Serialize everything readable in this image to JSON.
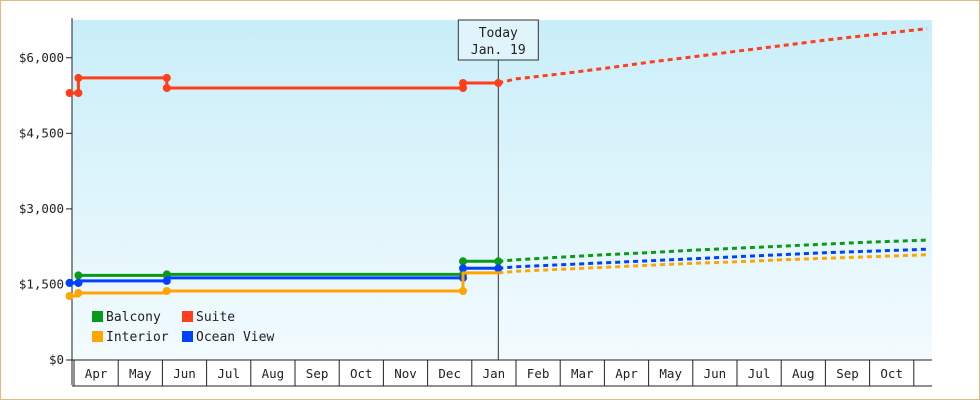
{
  "chart_data": {
    "type": "line",
    "title": "",
    "xlabel": "",
    "ylabel": "",
    "ylim": [
      0,
      6750
    ],
    "y_ticks": [
      "$0",
      "$1,500",
      "$3,000",
      "$4,500",
      "$6,000"
    ],
    "y_tick_values": [
      0,
      1500,
      3000,
      4500,
      6000
    ],
    "x_range": [
      0,
      19.3
    ],
    "x_month_labels": [
      "Apr",
      "May",
      "Jun",
      "Jul",
      "Aug",
      "Sep",
      "Oct",
      "Nov",
      "Dec",
      "Jan",
      "Feb",
      "Mar",
      "Apr",
      "May",
      "Jun",
      "Jul",
      "Aug",
      "Sep",
      "Oct"
    ],
    "today": {
      "label": "Today",
      "date": "Jan. 19",
      "x": 9.6
    },
    "legend_placement": "bottom-left",
    "series": [
      {
        "name": "Suite",
        "color": "#ff3e1e",
        "history": [
          [
            -0.1,
            5300
          ],
          [
            0.1,
            5300
          ],
          [
            0.1,
            5600
          ],
          [
            2.1,
            5600
          ],
          [
            2.1,
            5400
          ],
          [
            8.8,
            5400
          ],
          [
            8.8,
            5500
          ],
          [
            9.6,
            5500
          ]
        ],
        "markers": [
          [
            -0.1,
            5300
          ],
          [
            0.1,
            5300
          ],
          [
            0.1,
            5600
          ],
          [
            2.1,
            5600
          ],
          [
            2.1,
            5400
          ],
          [
            8.8,
            5400
          ],
          [
            8.8,
            5500
          ],
          [
            9.6,
            5500
          ]
        ],
        "forecast": [
          [
            9.6,
            5500
          ],
          [
            10.0,
            5580
          ],
          [
            11.0,
            5680
          ],
          [
            12.0,
            5790
          ],
          [
            13.0,
            5910
          ],
          [
            14.0,
            6020
          ],
          [
            15.0,
            6130
          ],
          [
            16.0,
            6240
          ],
          [
            17.0,
            6350
          ],
          [
            18.0,
            6450
          ],
          [
            19.0,
            6550
          ],
          [
            19.3,
            6580
          ]
        ]
      },
      {
        "name": "Balcony",
        "color": "#0a9a1a",
        "history": [
          [
            -0.1,
            1530
          ],
          [
            0.1,
            1530
          ],
          [
            0.1,
            1680
          ],
          [
            2.1,
            1680
          ],
          [
            2.1,
            1700
          ],
          [
            8.8,
            1700
          ],
          [
            8.8,
            1960
          ],
          [
            9.6,
            1960
          ]
        ],
        "markers": [
          [
            -0.1,
            1530
          ],
          [
            0.1,
            1530
          ],
          [
            0.1,
            1680
          ],
          [
            2.1,
            1680
          ],
          [
            2.1,
            1700
          ],
          [
            8.8,
            1700
          ],
          [
            8.8,
            1960
          ],
          [
            9.6,
            1960
          ]
        ],
        "forecast": [
          [
            9.6,
            1960
          ],
          [
            10.0,
            1990
          ],
          [
            11.0,
            2040
          ],
          [
            12.0,
            2090
          ],
          [
            13.0,
            2130
          ],
          [
            14.0,
            2180
          ],
          [
            15.0,
            2220
          ],
          [
            16.0,
            2260
          ],
          [
            17.0,
            2300
          ],
          [
            18.0,
            2340
          ],
          [
            19.0,
            2370
          ],
          [
            19.3,
            2380
          ]
        ]
      },
      {
        "name": "Ocean View",
        "color": "#0040ff",
        "history": [
          [
            -0.1,
            1530
          ],
          [
            0.1,
            1530
          ],
          [
            0.1,
            1570
          ],
          [
            2.1,
            1570
          ],
          [
            2.1,
            1630
          ],
          [
            8.8,
            1630
          ],
          [
            8.8,
            1820
          ],
          [
            9.6,
            1820
          ]
        ],
        "markers": [
          [
            -0.1,
            1530
          ],
          [
            0.1,
            1530
          ],
          [
            2.1,
            1570
          ],
          [
            8.8,
            1630
          ],
          [
            8.8,
            1820
          ],
          [
            9.6,
            1820
          ]
        ],
        "forecast": [
          [
            9.6,
            1820
          ],
          [
            10.0,
            1850
          ],
          [
            11.0,
            1890
          ],
          [
            12.0,
            1930
          ],
          [
            13.0,
            1970
          ],
          [
            14.0,
            2010
          ],
          [
            15.0,
            2050
          ],
          [
            16.0,
            2090
          ],
          [
            17.0,
            2130
          ],
          [
            18.0,
            2160
          ],
          [
            19.0,
            2190
          ],
          [
            19.3,
            2200
          ]
        ]
      },
      {
        "name": "Interior",
        "color": "#ffa500",
        "history": [
          [
            -0.1,
            1270
          ],
          [
            0.1,
            1270
          ],
          [
            0.1,
            1330
          ],
          [
            2.1,
            1330
          ],
          [
            2.1,
            1370
          ],
          [
            8.8,
            1370
          ],
          [
            8.8,
            1730
          ],
          [
            9.6,
            1730
          ]
        ],
        "markers": [
          [
            -0.1,
            1270
          ],
          [
            0.1,
            1330
          ],
          [
            2.1,
            1370
          ],
          [
            8.8,
            1370
          ]
        ],
        "forecast": [
          [
            9.6,
            1730
          ],
          [
            10.0,
            1760
          ],
          [
            11.0,
            1800
          ],
          [
            12.0,
            1840
          ],
          [
            13.0,
            1880
          ],
          [
            14.0,
            1920
          ],
          [
            15.0,
            1950
          ],
          [
            16.0,
            1990
          ],
          [
            17.0,
            2020
          ],
          [
            18.0,
            2050
          ],
          [
            19.0,
            2080
          ],
          [
            19.3,
            2090
          ]
        ]
      }
    ],
    "legend": [
      {
        "name": "Balcony",
        "color": "#0a9a1a"
      },
      {
        "name": "Suite",
        "color": "#ff3e1e"
      },
      {
        "name": "Interior",
        "color": "#ffa500"
      },
      {
        "name": "Ocean View",
        "color": "#0040ff"
      }
    ]
  }
}
